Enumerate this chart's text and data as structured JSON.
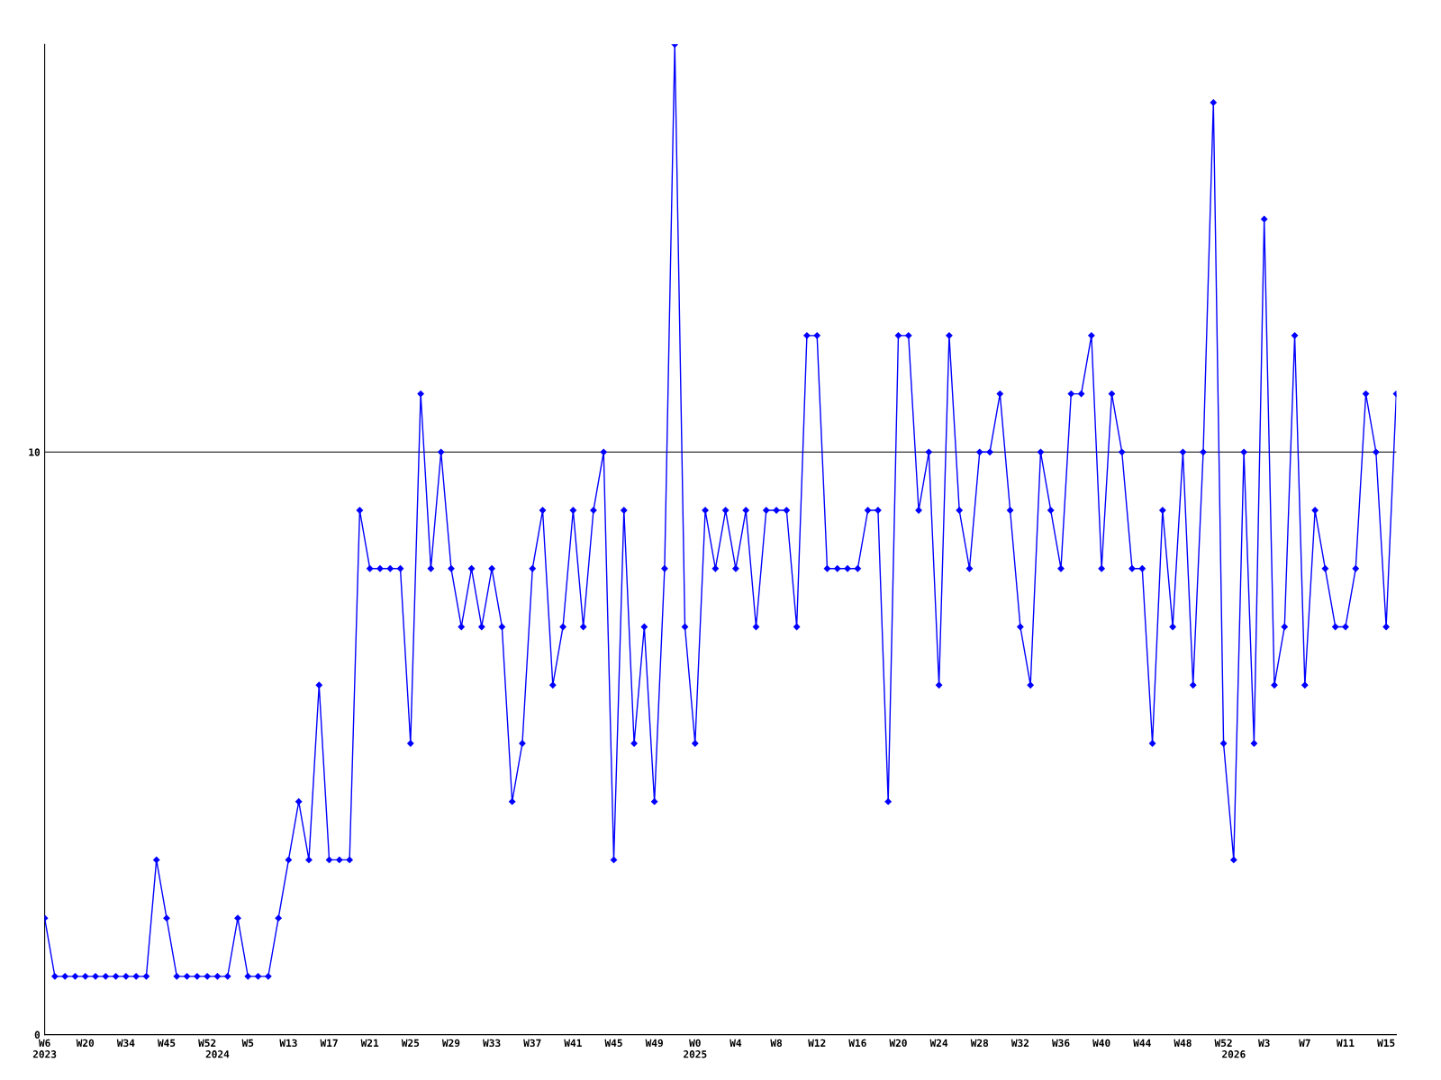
{
  "chart_data": {
    "type": "line",
    "categories": [
      "W6\n2023",
      null,
      null,
      null,
      "W20",
      null,
      null,
      null,
      "W34",
      null,
      null,
      null,
      "W45",
      null,
      null,
      null,
      "W52",
      "\n2024",
      null,
      null,
      "W5",
      null,
      null,
      null,
      "W13",
      null,
      null,
      null,
      "W17",
      null,
      null,
      null,
      "W21",
      null,
      null,
      null,
      "W25",
      null,
      null,
      null,
      "W29",
      null,
      null,
      null,
      "W33",
      null,
      null,
      null,
      "W37",
      null,
      null,
      null,
      "W41",
      null,
      null,
      null,
      "W45",
      null,
      null,
      null,
      "W49",
      null,
      null,
      null,
      "W0\n2025",
      null,
      null,
      null,
      "W4",
      null,
      null,
      null,
      "W8",
      null,
      null,
      null,
      "W12",
      null,
      null,
      null,
      "W16",
      null,
      null,
      null,
      "W20",
      null,
      null,
      null,
      "W24",
      null,
      null,
      null,
      "W28",
      null,
      null,
      null,
      "W32",
      null,
      null,
      null,
      "W36",
      null,
      null,
      null,
      "W40",
      null,
      null,
      null,
      "W44",
      null,
      null,
      null,
      "W48",
      null,
      null,
      null,
      "W52",
      "\n2026",
      null,
      null,
      "W3",
      null,
      null,
      null,
      "W7",
      null,
      null,
      null,
      "W11",
      null,
      null,
      null,
      "W15",
      null
    ],
    "series": [
      {
        "color": "#0000ff",
        "values": [
          2,
          1,
          1,
          1,
          1,
          1,
          1,
          1,
          1,
          1,
          1,
          3,
          2,
          1,
          1,
          1,
          1,
          1,
          1,
          2,
          1,
          1,
          1,
          2,
          3,
          4,
          3,
          6,
          3,
          3,
          3,
          9,
          8,
          8,
          8,
          8,
          5,
          11,
          8,
          10,
          8,
          7,
          8,
          7,
          8,
          7,
          4,
          5,
          8,
          9,
          6,
          7,
          9,
          7,
          9,
          10,
          3,
          9,
          5,
          7,
          4,
          8,
          17,
          7,
          5,
          9,
          8,
          9,
          8,
          9,
          7,
          9,
          9,
          9,
          7,
          12,
          12,
          8,
          8,
          8,
          8,
          9,
          9,
          4,
          12,
          12,
          9,
          10,
          6,
          12,
          9,
          8,
          10,
          10,
          11,
          9,
          7,
          6,
          10,
          9,
          8,
          11,
          11,
          12,
          8,
          11,
          10,
          8,
          8,
          5,
          9,
          7,
          10,
          6,
          10,
          16,
          5,
          3,
          10,
          5,
          14,
          6,
          7,
          12,
          6,
          9,
          8,
          7,
          7,
          8,
          11,
          10,
          7,
          11
        ]
      }
    ],
    "ylim": [
      0,
      17
    ],
    "yticks": [
      0,
      10
    ],
    "grid": "y",
    "marker": "diamond",
    "line_style": "solid"
  }
}
